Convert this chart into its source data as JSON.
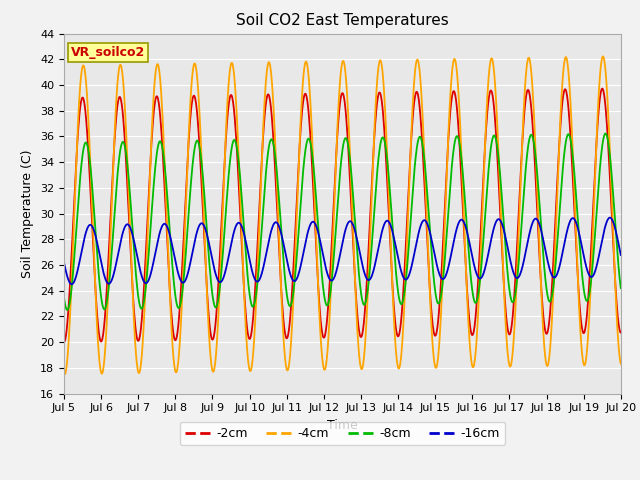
{
  "title": "Soil CO2 East Temperatures",
  "xlabel": "Time",
  "ylabel": "Soil Temperature (C)",
  "ylim": [
    16,
    44
  ],
  "yticks": [
    16,
    18,
    20,
    22,
    24,
    26,
    28,
    30,
    32,
    34,
    36,
    38,
    40,
    42,
    44
  ],
  "x_start_day": 5,
  "x_end_day": 20,
  "x_tick_days": [
    5,
    6,
    7,
    8,
    9,
    10,
    11,
    12,
    13,
    14,
    15,
    16,
    17,
    18,
    19,
    20
  ],
  "series": [
    {
      "label": "-2cm",
      "color": "#dd0000",
      "amplitude": 9.5,
      "mean": 29.5,
      "phase_shift": 0.0,
      "trend": 0.05
    },
    {
      "label": "-4cm",
      "color": "#ffa500",
      "amplitude": 12.0,
      "mean": 29.5,
      "phase_shift": 0.12,
      "trend": 0.05
    },
    {
      "label": "-8cm",
      "color": "#00bb00",
      "amplitude": 6.5,
      "mean": 29.0,
      "phase_shift": 0.55,
      "trend": 0.05
    },
    {
      "label": "-16cm",
      "color": "#0000cc",
      "amplitude": 2.3,
      "mean": 26.8,
      "phase_shift": 1.3,
      "trend": 0.04
    }
  ],
  "legend_title": "VR_soilco2",
  "legend_title_color": "#cc0000",
  "legend_box_facecolor": "#ffff99",
  "legend_box_edgecolor": "#999900",
  "plot_bg_color": "#e8e8e8",
  "fig_bg_color": "#f2f2f2",
  "grid_color": "#ffffff",
  "title_fontsize": 11,
  "axis_label_fontsize": 9,
  "tick_fontsize": 8,
  "legend_fontsize": 9,
  "linewidth": 1.3
}
